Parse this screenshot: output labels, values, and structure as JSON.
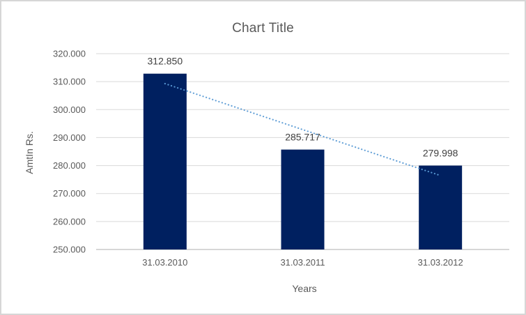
{
  "chart_data": {
    "type": "bar",
    "title": "Chart Title",
    "xlabel": "Years",
    "ylabel": "AmtIn Rs.",
    "categories": [
      "31.03.2010",
      "31.03.2011",
      "31.03.2012"
    ],
    "values": [
      312850,
      285717,
      279998
    ],
    "data_labels": [
      "312.850",
      "285.717",
      "279.998"
    ],
    "ylim": [
      250000,
      320000
    ],
    "y_tick_step": 10000,
    "y_tick_labels": [
      "250.000",
      "260.000",
      "270.000",
      "280.000",
      "290.000",
      "300.000",
      "310.000",
      "320.000"
    ],
    "grid": true,
    "legend": "none",
    "trendline": {
      "type": "linear",
      "style": "dotted"
    },
    "colors": {
      "bar": "#002060",
      "trendline": "#5b9bd5",
      "gridline": "#d9d9d9",
      "axis_line": "#bfbfbf",
      "title_text": "#595959",
      "axis_text": "#595959",
      "label_text": "#404040",
      "border": "#d6d6d6",
      "background": "#ffffff"
    }
  }
}
